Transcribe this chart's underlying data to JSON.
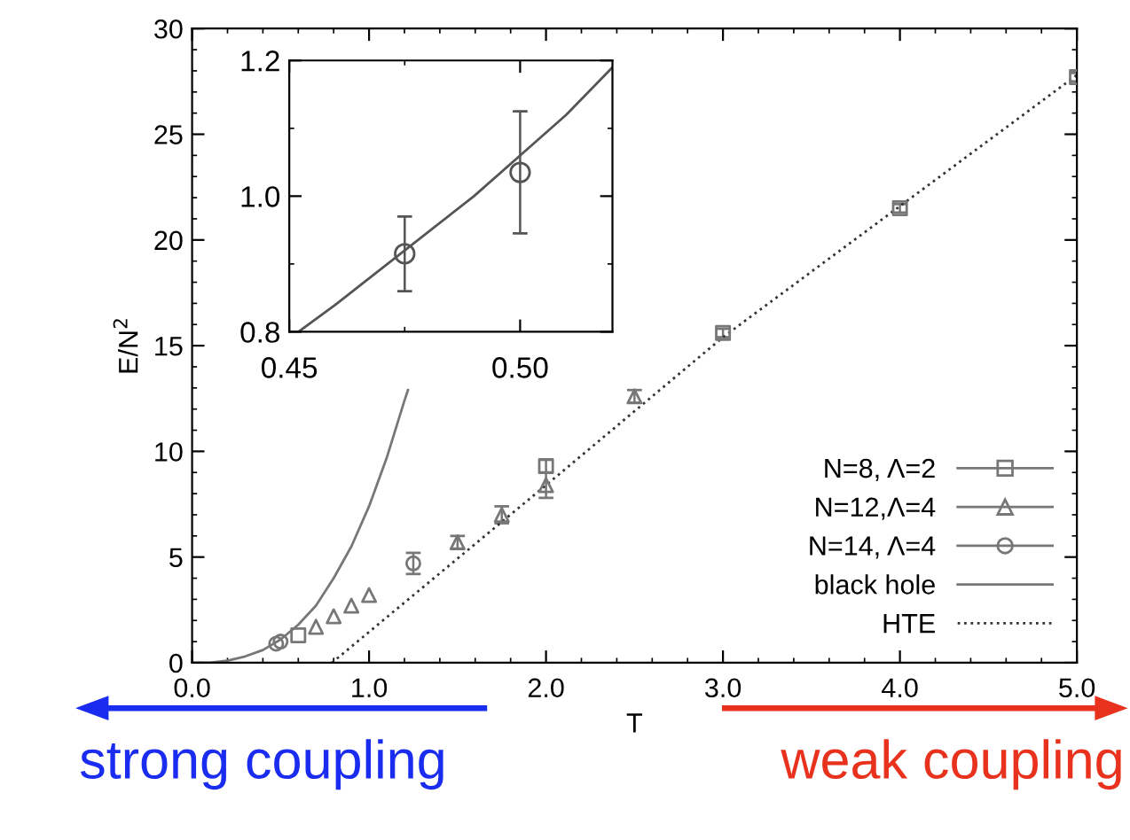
{
  "chart_data": [
    {
      "type": "scatter",
      "xlabel": "T",
      "ylabel": "E/N$^{2}$",
      "xlim": [
        0,
        5
      ],
      "ylim": [
        0,
        30
      ],
      "xticks": [
        {
          "value": 0,
          "label": "0.0"
        },
        {
          "value": 1,
          "label": "1.0"
        },
        {
          "value": 2,
          "label": "2.0"
        },
        {
          "value": 3,
          "label": "3.0"
        },
        {
          "value": 4,
          "label": "4.0"
        },
        {
          "value": 5,
          "label": "5.0"
        }
      ],
      "yticks": [
        0,
        5,
        10,
        15,
        20,
        25,
        30
      ],
      "legend": "bottom right",
      "grid": false,
      "series": [
        {
          "name": "N=8, Λ=2",
          "color": "#777777",
          "marker": "square",
          "x": [
            0.6,
            2.0,
            3.0,
            4.0,
            5.0
          ],
          "values": [
            1.3,
            9.3,
            15.6,
            21.5,
            27.7
          ],
          "errors": [
            null,
            0.3,
            0.2,
            0.2,
            0.2
          ]
        },
        {
          "name": "N=12,Λ=4",
          "color": "#777777",
          "marker": "triangle",
          "x": [
            0.7,
            0.8,
            0.9,
            1.0,
            1.5,
            1.75,
            2.0,
            2.5
          ],
          "values": [
            1.7,
            2.2,
            2.7,
            3.2,
            5.7,
            7.0,
            8.4,
            12.6
          ],
          "errors": [
            null,
            null,
            null,
            null,
            0.3,
            0.4,
            0.6,
            0.3
          ]
        },
        {
          "name": "N=14, Λ=4",
          "color": "#777777",
          "marker": "circle",
          "x": [
            0.475,
            0.5,
            1.25
          ],
          "values": [
            0.9,
            1.0,
            4.7
          ],
          "errors": [
            null,
            null,
            0.5
          ]
        },
        {
          "name": "black hole",
          "type": "line",
          "color": "#777777",
          "line_style": "solid",
          "marker": "none",
          "x": [
            0.0,
            0.1,
            0.2,
            0.3,
            0.4,
            0.5,
            0.6,
            0.7,
            0.8,
            0.9,
            1.0,
            1.1,
            1.2,
            1.22
          ],
          "values": [
            0.0,
            0.0,
            0.1,
            0.3,
            0.6,
            1.1,
            1.8,
            2.7,
            4.0,
            5.5,
            7.4,
            9.7,
            12.4,
            12.9
          ]
        },
        {
          "name": "HTE",
          "type": "line",
          "color": "#333333",
          "line_style": "dotted",
          "marker": "none",
          "x": [
            0.79,
            2.0,
            3.0,
            4.0,
            5.0
          ],
          "values": [
            0.0,
            8.4,
            15.4,
            21.6,
            27.8
          ]
        }
      ],
      "annotations": [
        "strong coupling",
        "weak coupling"
      ]
    },
    {
      "type": "scatter",
      "xlim": [
        0.45,
        0.52
      ],
      "ylim": [
        0.8,
        1.2
      ],
      "xticks": [
        {
          "value": 0.45,
          "label": "0.45"
        },
        {
          "value": 0.5,
          "label": "0.50"
        }
      ],
      "yticks": [
        {
          "value": 0.8,
          "label": "0.8"
        },
        {
          "value": 1.0,
          "label": "1.0"
        },
        {
          "value": 1.2,
          "label": "1.2"
        }
      ],
      "grid": false,
      "series": [
        {
          "color": "#555555",
          "marker": "circle",
          "x": [
            0.475,
            0.5
          ],
          "values": [
            0.915,
            1.035
          ],
          "errors": [
            [
              0.86,
              0.97
            ],
            [
              0.945,
              1.125
            ]
          ]
        },
        {
          "type": "line",
          "color": "#555555",
          "line_style": "solid",
          "marker": "none",
          "x": [
            0.452,
            0.46,
            0.475,
            0.49,
            0.5,
            0.51,
            0.52
          ],
          "values": [
            0.8,
            0.84,
            0.92,
            1.0,
            1.06,
            1.12,
            1.19
          ]
        }
      ]
    }
  ]
}
